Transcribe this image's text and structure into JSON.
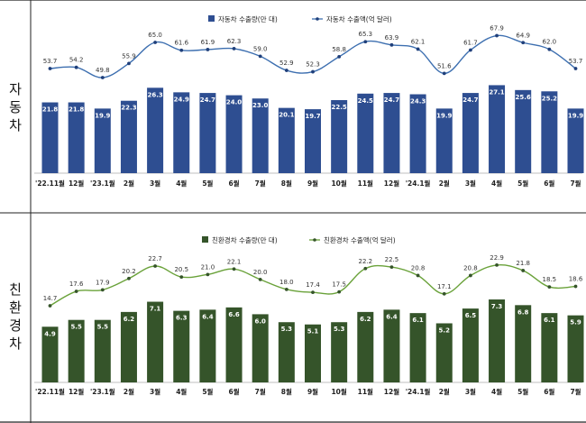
{
  "panels": [
    {
      "id": "auto",
      "side_label": [
        "자",
        "동",
        "차"
      ],
      "bar_color": "#2e4e91",
      "line_color": "#3d6fb0",
      "legend_bar": "자동차 수출량(만 대)",
      "legend_line": "자동차 수출액(억 달러)"
    },
    {
      "id": "eco",
      "side_label": [
        "친",
        "환",
        "경",
        "차"
      ],
      "bar_color": "#35542a",
      "line_color": "#6aa23a",
      "legend_bar": "친환경차 수출량(만 대)",
      "legend_line": "친환경차 수출액(억 달러)"
    }
  ],
  "chart_data": [
    {
      "type": "bar+line",
      "title": "자동차",
      "categories": [
        "'22.11월",
        "12월",
        "'23.1월",
        "2월",
        "3월",
        "4월",
        "5월",
        "6월",
        "7월",
        "8월",
        "9월",
        "10월",
        "11월",
        "12월",
        "'24.1월",
        "2월",
        "3월",
        "4월",
        "5월",
        "6월",
        "7월"
      ],
      "series": [
        {
          "name": "자동차 수출량(만 대)",
          "kind": "bar",
          "values": [
            21.8,
            21.8,
            19.9,
            22.3,
            26.3,
            24.9,
            24.7,
            24.0,
            23.0,
            20.1,
            19.7,
            22.5,
            24.5,
            24.7,
            24.3,
            19.9,
            24.7,
            27.1,
            25.6,
            25.2,
            19.9
          ]
        },
        {
          "name": "자동차 수출액(억 달러)",
          "kind": "line",
          "values": [
            53.7,
            54.2,
            49.8,
            55.9,
            65.0,
            61.6,
            61.9,
            62.3,
            59.0,
            52.9,
            52.3,
            58.8,
            65.3,
            63.9,
            62.1,
            51.6,
            61.7,
            67.9,
            64.9,
            62.0,
            53.7
          ]
        }
      ],
      "bar_ylim": [
        0,
        45
      ],
      "line_ylim": [
        0,
        80
      ]
    },
    {
      "type": "bar+line",
      "title": "친환경차",
      "categories": [
        "'22.11월",
        "12월",
        "'23.1월",
        "2월",
        "3월",
        "4월",
        "5월",
        "6월",
        "7월",
        "8월",
        "9월",
        "10월",
        "11월",
        "12월",
        "'24.1월",
        "2월",
        "3월",
        "4월",
        "5월",
        "6월",
        "7월"
      ],
      "series": [
        {
          "name": "친환경차 수출량(만 대)",
          "kind": "bar",
          "values": [
            4.9,
            5.5,
            5.5,
            6.2,
            7.1,
            6.3,
            6.4,
            6.6,
            6.0,
            5.3,
            5.1,
            5.3,
            6.2,
            6.4,
            6.1,
            5.2,
            6.5,
            7.3,
            6.8,
            6.1,
            5.9
          ]
        },
        {
          "name": "친환경차 수출액(억 달러)",
          "kind": "line",
          "values": [
            14.7,
            17.6,
            17.9,
            20.2,
            22.7,
            20.5,
            21.0,
            22.1,
            20.0,
            18.0,
            17.4,
            17.5,
            22.2,
            22.5,
            20.8,
            17.1,
            20.8,
            22.9,
            21.8,
            18.5,
            18.6
          ]
        }
      ],
      "bar_ylim": [
        0,
        11
      ],
      "line_ylim": [
        0,
        27.5
      ]
    }
  ]
}
